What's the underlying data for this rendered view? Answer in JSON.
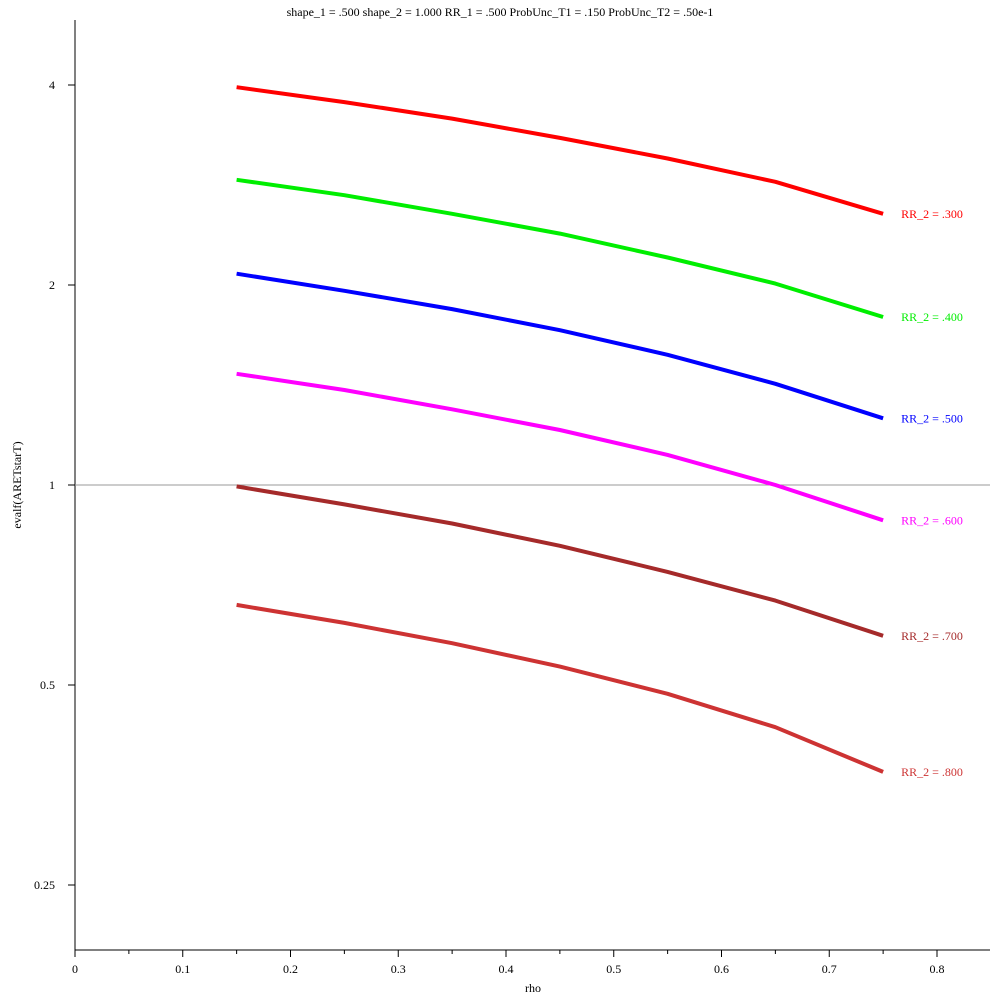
{
  "chart_data": {
    "type": "line",
    "title": "shape_1 = .500  shape_2 = 1.000  RR_1 = .500  ProbUnc_T1 = .150  ProbUnc_T2 = .50e-1",
    "xlabel": "rho",
    "ylabel": "evalf(ARETstarT)",
    "y_scale": "log",
    "xlim": [
      0,
      0.85
    ],
    "ylim": [
      0.2,
      5.0
    ],
    "x_ticks": [
      0,
      0.1,
      0.2,
      0.3,
      0.4,
      0.5,
      0.6,
      0.7,
      0.8
    ],
    "x_tick_labels": [
      "0",
      "0.1",
      "0.2",
      "0.3",
      "0.4",
      "0.5",
      "0.6",
      "0.7",
      "0.8"
    ],
    "y_ticks": [
      0.25,
      0.5,
      1,
      2,
      4
    ],
    "y_tick_labels": [
      "0.25",
      "0.5",
      "1",
      "2",
      "4"
    ],
    "reference_line_y": 1,
    "grid": false,
    "x": [
      0.15,
      0.25,
      0.35,
      0.45,
      0.55,
      0.65,
      0.75
    ],
    "series": [
      {
        "label": "RR_2 = .300",
        "color": "#ff0000",
        "values": [
          3.97,
          3.77,
          3.56,
          3.33,
          3.1,
          2.86,
          2.56
        ]
      },
      {
        "label": "RR_2 = .400",
        "color": "#00ee00",
        "values": [
          2.88,
          2.73,
          2.56,
          2.39,
          2.2,
          2.01,
          1.79
        ]
      },
      {
        "label": "RR_2 = .500",
        "color": "#0000ff",
        "values": [
          2.08,
          1.96,
          1.84,
          1.71,
          1.57,
          1.42,
          1.26
        ]
      },
      {
        "label": "RR_2 = .600",
        "color": "#ff00ff",
        "values": [
          1.47,
          1.39,
          1.3,
          1.21,
          1.11,
          1.0,
          0.885
        ]
      },
      {
        "label": "RR_2 = .700",
        "color": "#a52a2a",
        "values": [
          0.995,
          0.935,
          0.875,
          0.81,
          0.74,
          0.67,
          0.593
        ]
      },
      {
        "label": "RR_2 = .800",
        "color": "#cd3333",
        "values": [
          0.66,
          0.62,
          0.578,
          0.533,
          0.485,
          0.432,
          0.37
        ]
      }
    ]
  }
}
